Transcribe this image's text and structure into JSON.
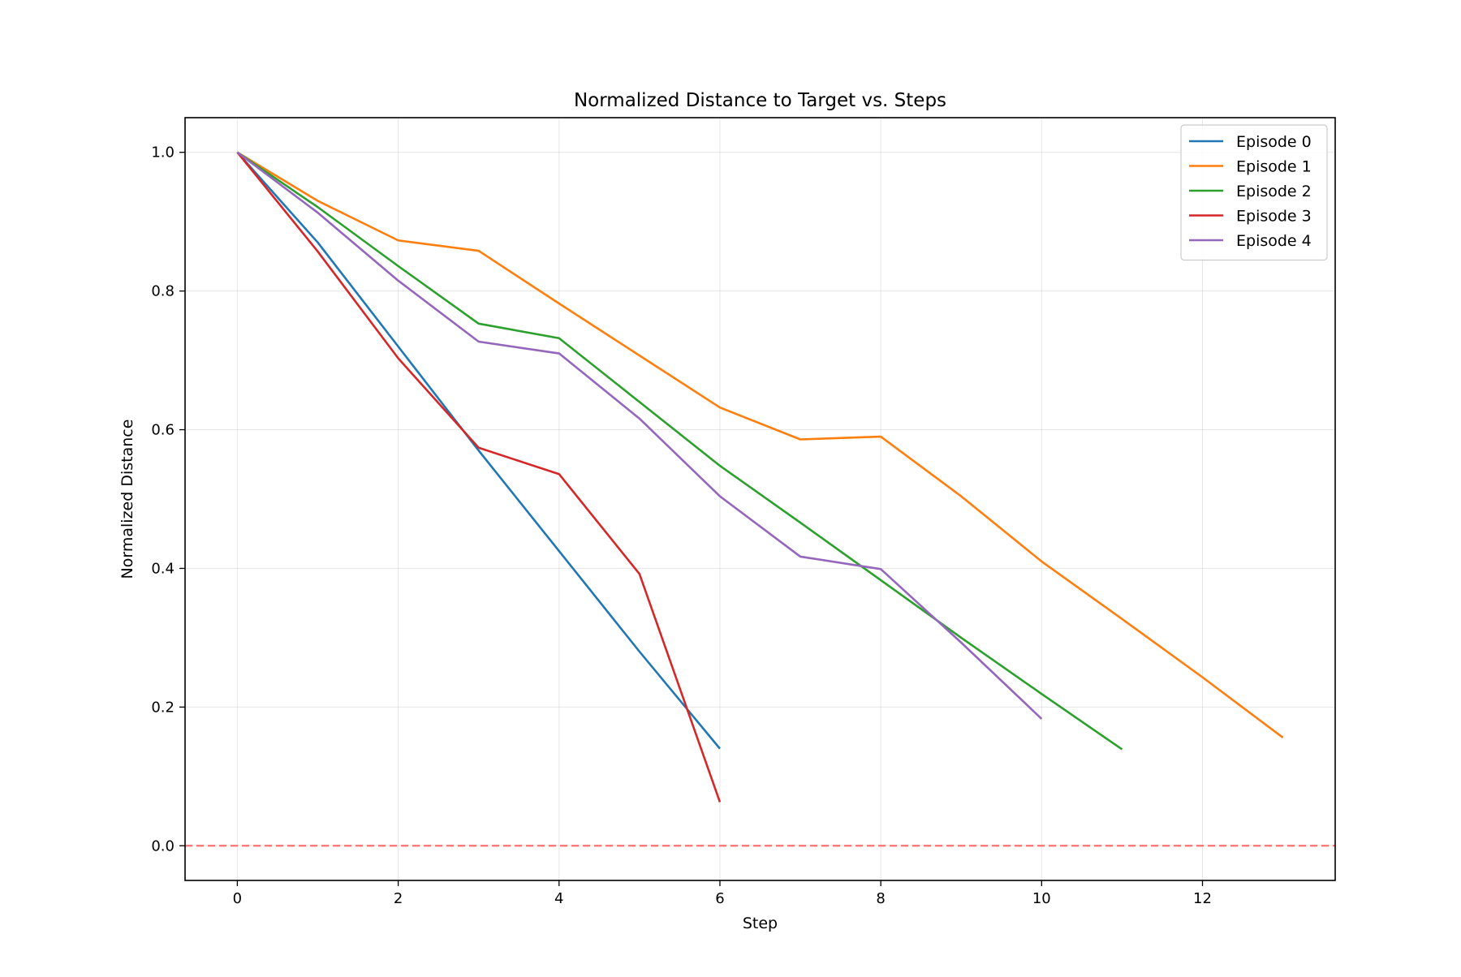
{
  "chart_data": {
    "type": "line",
    "title": "Normalized Distance to Target vs. Steps",
    "xlabel": "Step",
    "ylabel": "Normalized Distance",
    "xlim": [
      -0.65,
      13.65
    ],
    "ylim": [
      -0.05,
      1.05
    ],
    "xticks": [
      0,
      2,
      4,
      6,
      8,
      10,
      12
    ],
    "xtick_labels": [
      "0",
      "2",
      "4",
      "6",
      "8",
      "10",
      "12"
    ],
    "yticks": [
      0.0,
      0.2,
      0.4,
      0.6,
      0.8,
      1.0
    ],
    "ytick_labels": [
      "0.0",
      "0.2",
      "0.4",
      "0.6",
      "0.8",
      "1.0"
    ],
    "grid": true,
    "legend_position": "top-right",
    "reference_line": {
      "y": 0.0,
      "style": "dashed",
      "color": "#ff6b6b"
    },
    "series": [
      {
        "name": "Episode 0",
        "color": "#1f77b4",
        "x": [
          0,
          1,
          2,
          3,
          4,
          5,
          6
        ],
        "values": [
          1.0,
          0.87,
          0.72,
          0.57,
          0.425,
          0.28,
          0.14
        ]
      },
      {
        "name": "Episode 1",
        "color": "#ff7f0e",
        "x": [
          0,
          1,
          2,
          3,
          4,
          5,
          6,
          7,
          8,
          9,
          10,
          11,
          12,
          13
        ],
        "values": [
          1.0,
          0.93,
          0.873,
          0.858,
          0.782,
          0.707,
          0.632,
          0.586,
          0.59,
          0.504,
          0.41,
          0.327,
          0.243,
          0.156
        ]
      },
      {
        "name": "Episode 2",
        "color": "#2ca02c",
        "x": [
          0,
          1,
          2,
          3,
          4,
          5,
          6,
          7,
          8,
          9,
          10,
          11
        ],
        "values": [
          1.0,
          0.921,
          0.836,
          0.753,
          0.732,
          0.64,
          0.548,
          0.466,
          0.383,
          0.3,
          0.219,
          0.139
        ]
      },
      {
        "name": "Episode 3",
        "color": "#d62728",
        "x": [
          0,
          1,
          2,
          3,
          4,
          5,
          6
        ],
        "values": [
          1.0,
          0.857,
          0.703,
          0.574,
          0.536,
          0.392,
          0.063
        ]
      },
      {
        "name": "Episode 4",
        "color": "#9467bd",
        "x": [
          0,
          1,
          2,
          3,
          4,
          5,
          6,
          7,
          8,
          9,
          10
        ],
        "values": [
          1.0,
          0.913,
          0.815,
          0.727,
          0.71,
          0.616,
          0.504,
          0.417,
          0.399,
          0.293,
          0.183
        ]
      }
    ]
  }
}
